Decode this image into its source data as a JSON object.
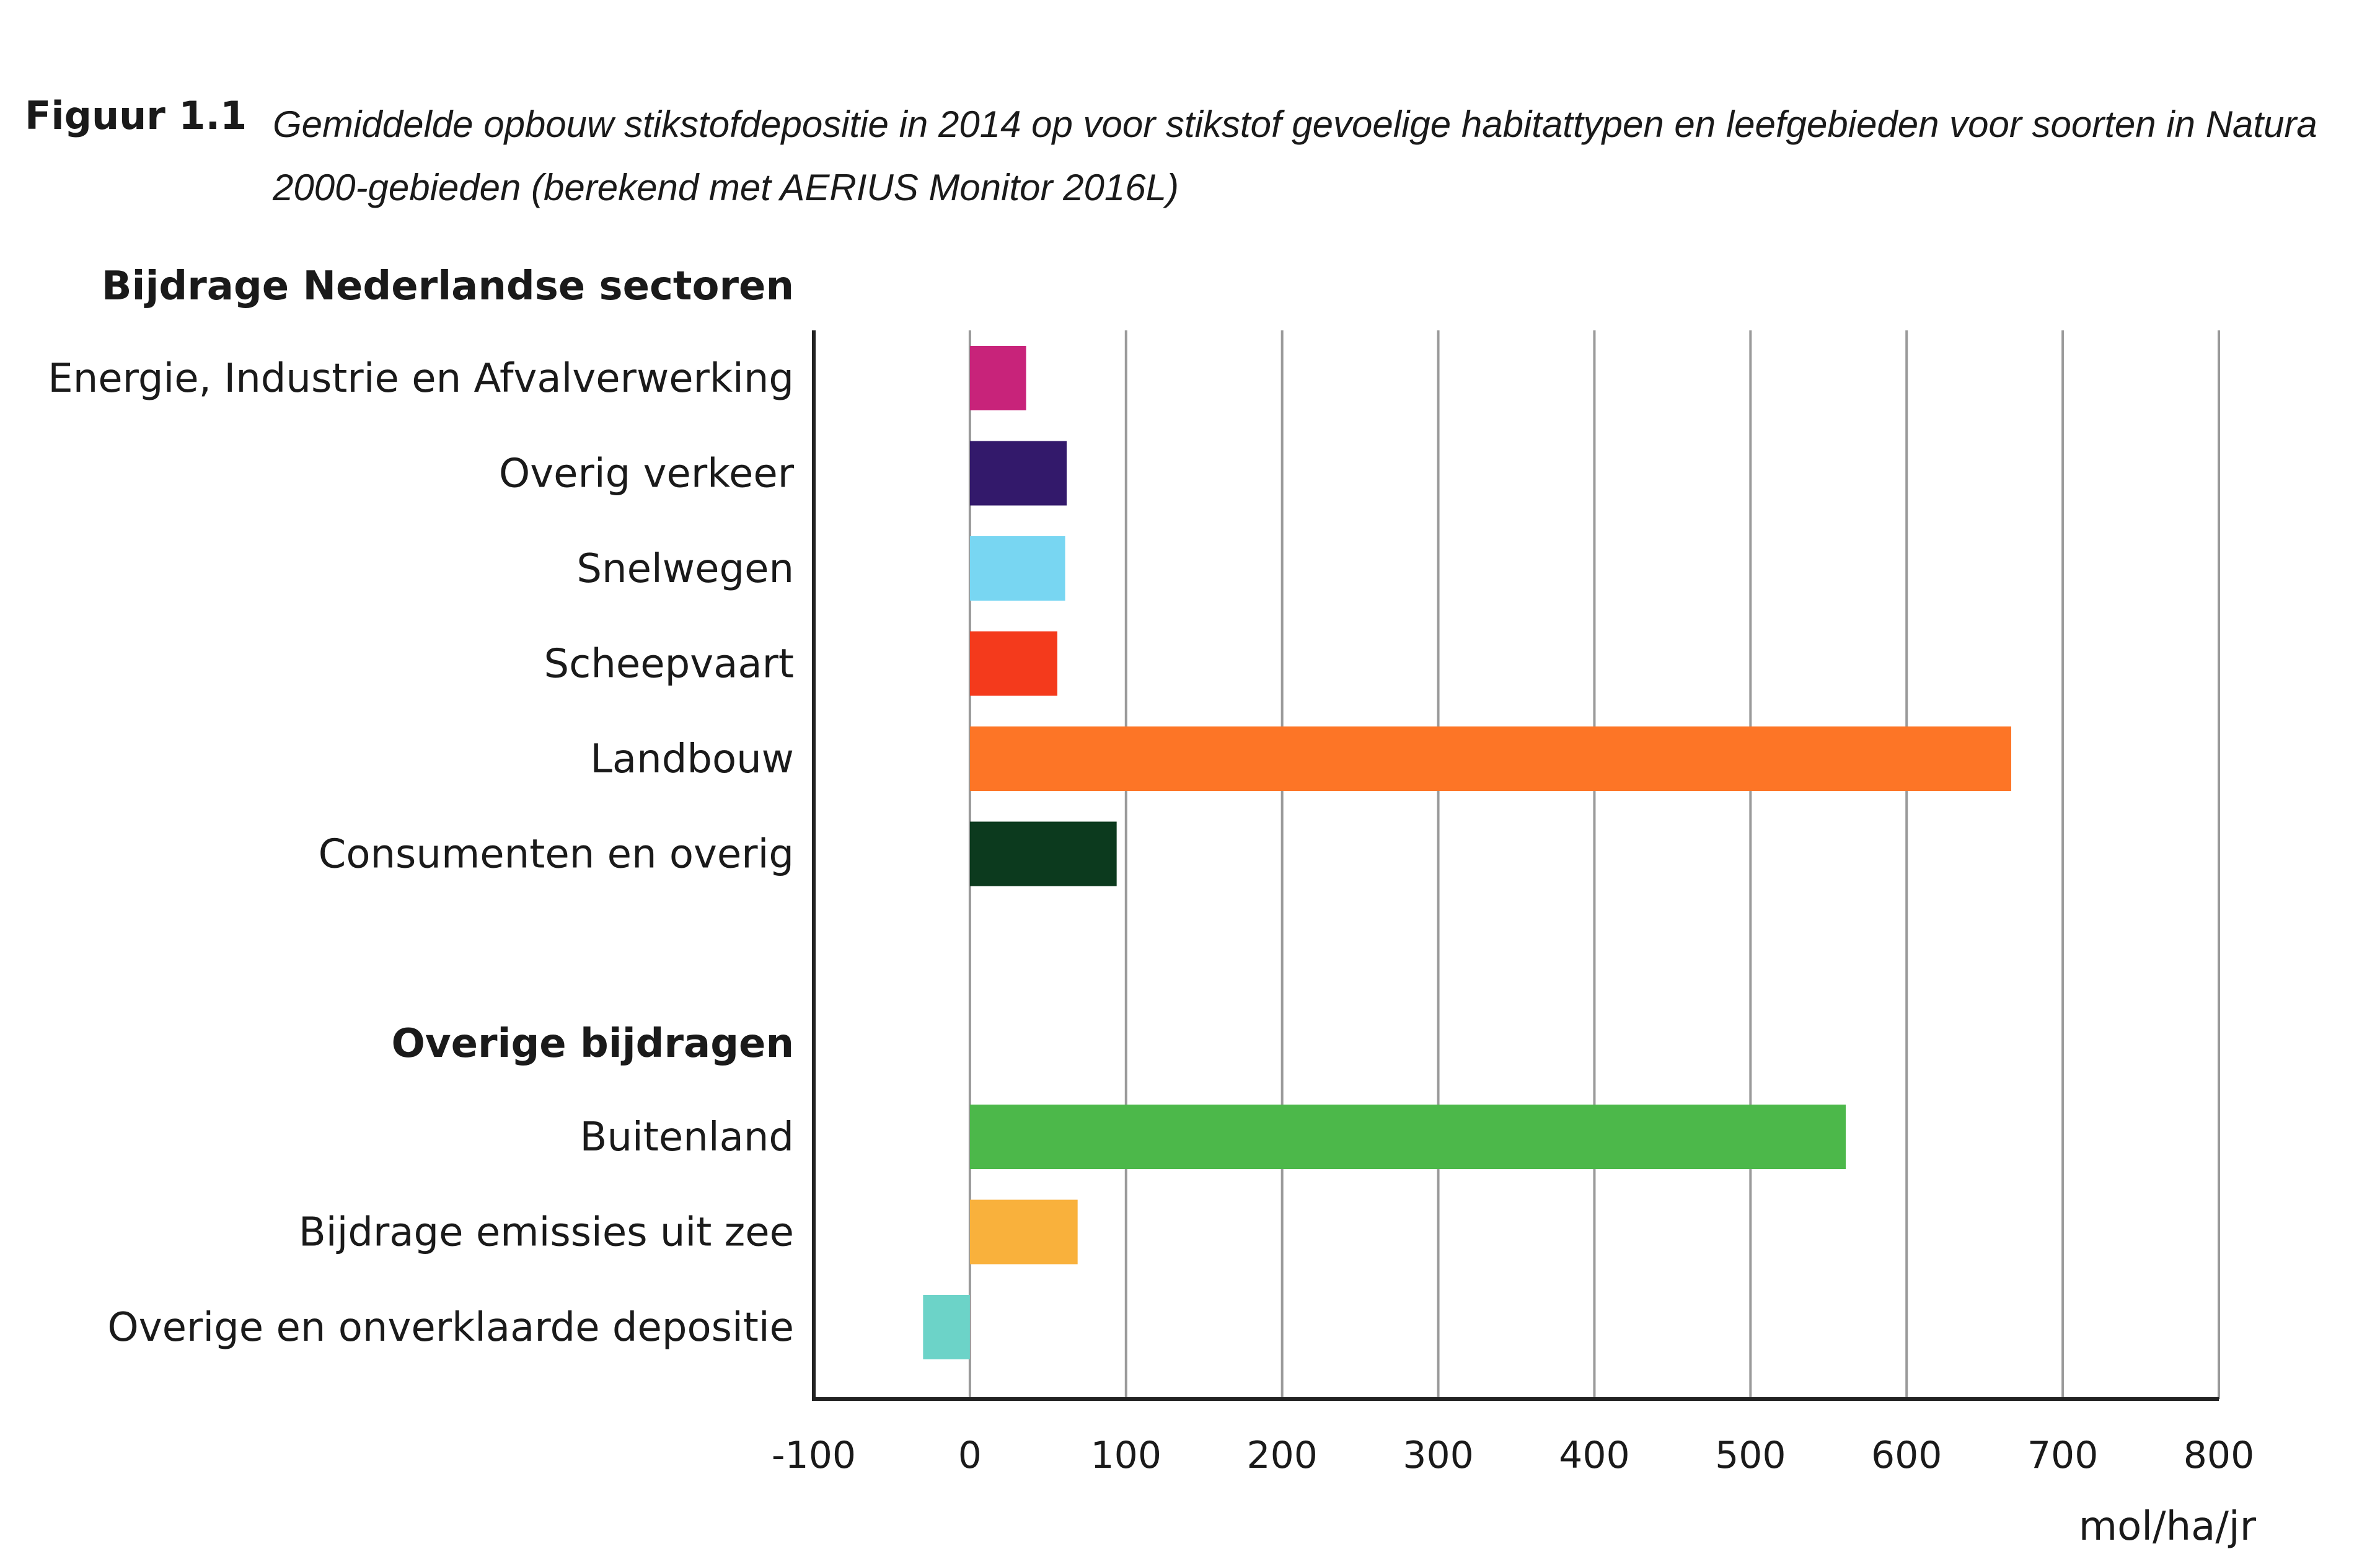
{
  "figure": {
    "label": "Figuur 1.1",
    "caption": "Gemiddelde opbouw stikstofdepositie in 2014 op voor stikstof gevoelige habitattypen en leefgebieden voor soorten in Natura 2000-gebieden (berekend met AERIUS Monitor 2016L)"
  },
  "chart_data": {
    "type": "bar",
    "orientation": "horizontal",
    "title": "Gemiddelde opbouw stikstofdepositie in 2014 op voor stikstof gevoelige habitattypen en leefgebieden voor soorten in Natura 2000-gebieden (berekend met AERIUS Monitor 2016L)",
    "xlabel": "mol/ha/jr",
    "ylabel": "",
    "xlim": [
      -100,
      800
    ],
    "xticks": [
      "-100",
      "0",
      "100",
      "200",
      "300",
      "400",
      "500",
      "600",
      "700",
      "800"
    ],
    "grid": "vertical",
    "groups": [
      {
        "name": "Bijdrage Nederlandse sectoren",
        "categories": [
          "Energie, Industrie en Afvalverwerking",
          "Overig verkeer",
          "Snelwegen",
          "Scheepvaart",
          "Landbouw",
          "Consumenten en overig"
        ],
        "values": [
          36,
          62,
          61,
          56,
          667,
          94
        ],
        "colors": [
          "#c8237a",
          "#33196b",
          "#78d6f2",
          "#f43a1c",
          "#fd7526",
          "#0c3a1e"
        ]
      },
      {
        "name": "Overige bijdragen",
        "categories": [
          "Buitenland",
          "Bijdrage emissies uit zee",
          "Overige en onverklaarde depositie"
        ],
        "values": [
          561,
          69,
          -30
        ],
        "colors": [
          "#4cb84a",
          "#f9b13c",
          "#6cd3c8"
        ]
      }
    ]
  }
}
